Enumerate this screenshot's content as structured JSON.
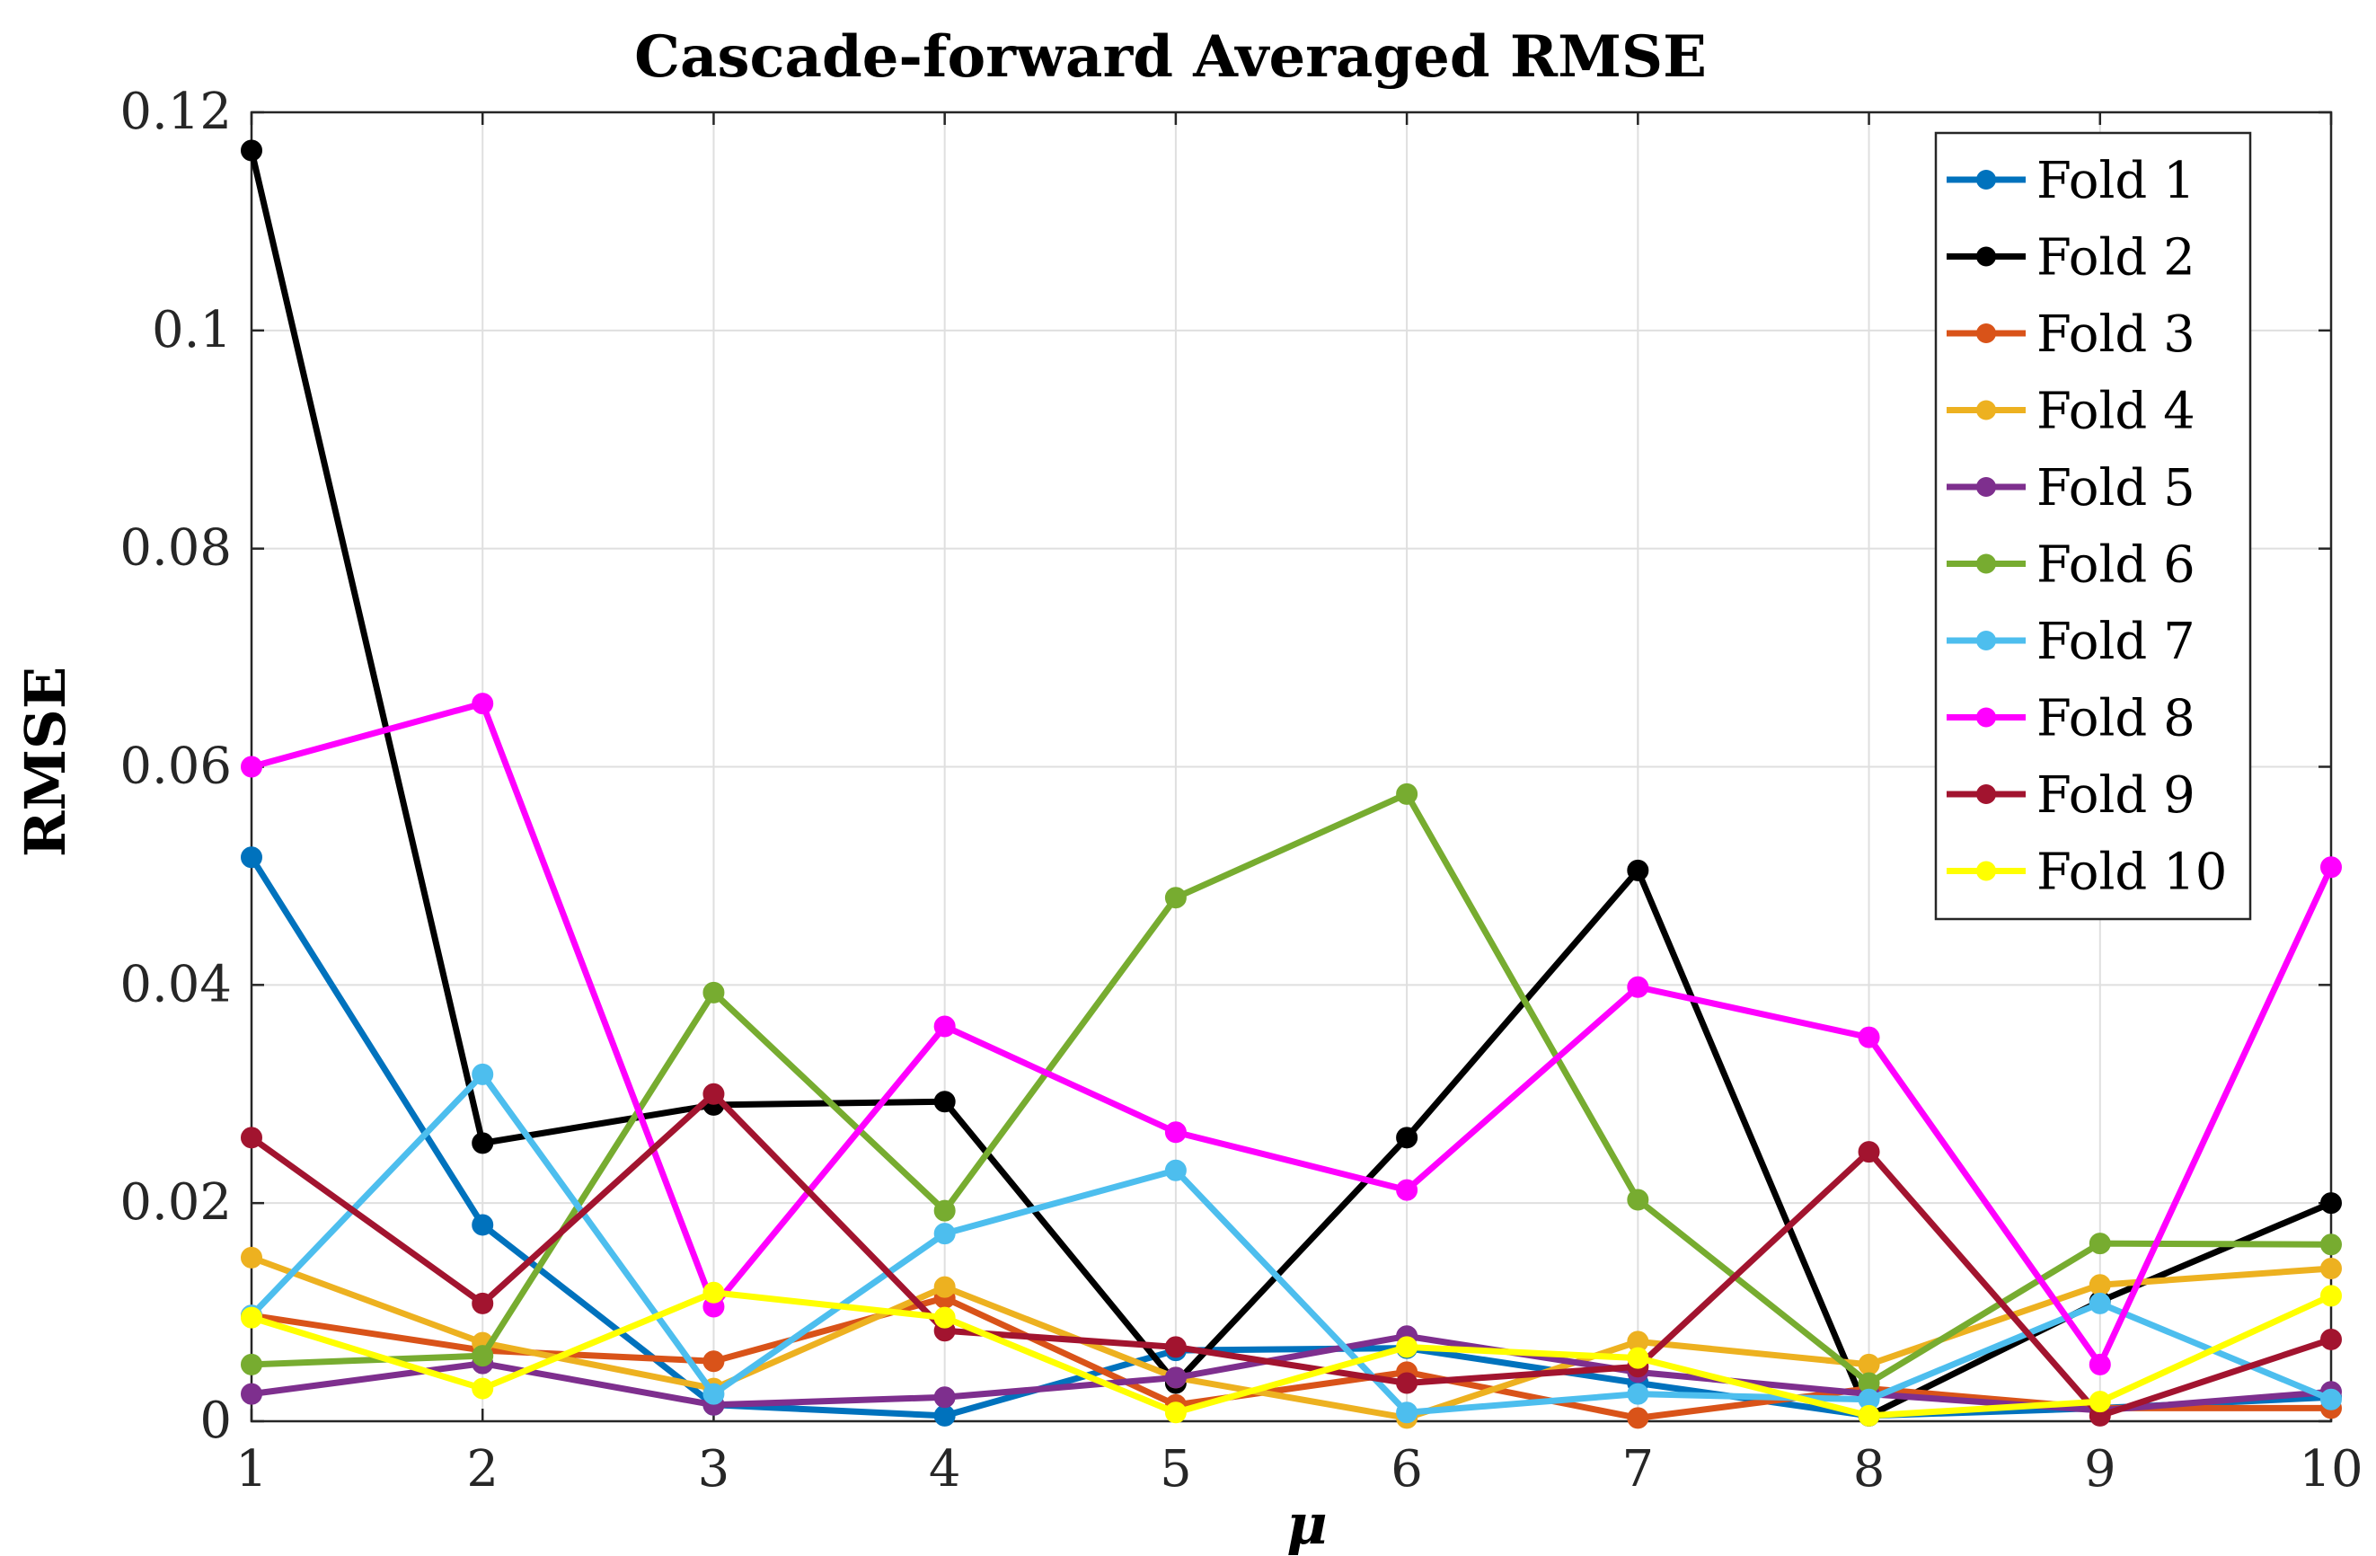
{
  "chart_data": {
    "type": "line",
    "title": "Cascade-forward Averaged RMSE",
    "xlabel": "μ",
    "ylabel": "RMSE",
    "x": [
      1,
      2,
      3,
      4,
      5,
      6,
      7,
      8,
      9,
      10
    ],
    "xlim": [
      1,
      10
    ],
    "ylim": [
      0,
      0.12
    ],
    "xticks": [
      1,
      2,
      3,
      4,
      5,
      6,
      7,
      8,
      9,
      10
    ],
    "yticks": [
      0,
      0.02,
      0.04,
      0.06,
      0.08,
      0.1,
      0.12
    ],
    "ytick_labels": [
      "0",
      "0.02",
      "0.04",
      "0.06",
      "0.08",
      "0.1",
      "0.12"
    ],
    "grid": true,
    "legend_position": "top-right",
    "series": [
      {
        "name": "Fold 1",
        "color": "#0072BD",
        "values": [
          0.0517,
          0.018,
          0.0015,
          0.0005,
          0.0065,
          0.0067,
          0.0035,
          0.0005,
          0.0012,
          0.0022
        ]
      },
      {
        "name": "Fold 2",
        "color": "#000000",
        "values": [
          0.1165,
          0.0255,
          0.029,
          0.0293,
          0.0035,
          0.026,
          0.0505,
          0.0005,
          0.011,
          0.02
        ]
      },
      {
        "name": "Fold 3",
        "color": "#D95319",
        "values": [
          0.0097,
          0.0065,
          0.0055,
          0.0113,
          0.0015,
          0.0045,
          0.0003,
          0.003,
          0.0012,
          0.0012
        ]
      },
      {
        "name": "Fold 4",
        "color": "#EDB120",
        "values": [
          0.015,
          0.0072,
          0.003,
          0.0123,
          0.004,
          0.0003,
          0.0073,
          0.0052,
          0.0125,
          0.014
        ]
      },
      {
        "name": "Fold 5",
        "color": "#7E2F8E",
        "values": [
          0.0025,
          0.0053,
          0.0015,
          0.0022,
          0.004,
          0.0078,
          0.0045,
          0.0025,
          0.001,
          0.0027
        ]
      },
      {
        "name": "Fold 6",
        "color": "#77AC30",
        "values": [
          0.0052,
          0.006,
          0.0393,
          0.0193,
          0.048,
          0.0575,
          0.0203,
          0.0035,
          0.0163,
          0.0162
        ]
      },
      {
        "name": "Fold 7",
        "color": "#4DBEEE",
        "values": [
          0.0097,
          0.0318,
          0.0025,
          0.0172,
          0.023,
          0.0008,
          0.0025,
          0.002,
          0.0108,
          0.002
        ]
      },
      {
        "name": "Fold 8",
        "color": "#FF00FF",
        "values": [
          0.06,
          0.0658,
          0.0105,
          0.0362,
          0.0265,
          0.0212,
          0.0398,
          0.0352,
          0.0052,
          0.0508
        ]
      },
      {
        "name": "Fold 9",
        "color": "#A2142F",
        "values": [
          0.026,
          0.0108,
          0.03,
          0.0083,
          0.0068,
          0.0035,
          0.005,
          0.0247,
          0.0005,
          0.0075
        ]
      },
      {
        "name": "Fold 10",
        "color": "#FFFF00",
        "values": [
          0.0095,
          0.003,
          0.0118,
          0.0095,
          0.0008,
          0.0068,
          0.0058,
          0.0005,
          0.0018,
          0.0115
        ]
      }
    ]
  }
}
